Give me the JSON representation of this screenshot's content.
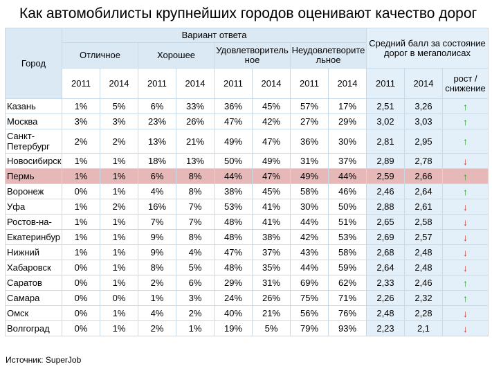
{
  "title": "Как автомобилисты крупнейших городов оценивают качество дорог",
  "headers": {
    "city": "Город",
    "variant": "Вариант ответа",
    "groups": [
      "Отличное",
      "Хорошее",
      "Удовлетворитель ное",
      "Неудовлетворите льное"
    ],
    "avg": "Средний балл за состояние дорог в мегаполисах",
    "years": [
      "2011",
      "2014"
    ],
    "trend": "рост / снижение"
  },
  "rows": [
    {
      "city": "Казань",
      "v": [
        "1%",
        "5%",
        "6%",
        "33%",
        "36%",
        "45%",
        "57%",
        "17%",
        "2,51",
        "3,26"
      ],
      "trend": "up"
    },
    {
      "city": "Москва",
      "v": [
        "3%",
        "3%",
        "23%",
        "26%",
        "47%",
        "42%",
        "27%",
        "29%",
        "3,02",
        "3,03"
      ],
      "trend": "up"
    },
    {
      "city": "Санкт-Петербург",
      "v": [
        "2%",
        "2%",
        "13%",
        "21%",
        "49%",
        "47%",
        "36%",
        "30%",
        "2,81",
        "2,95"
      ],
      "trend": "up"
    },
    {
      "city": "Новосибирск",
      "v": [
        "1%",
        "1%",
        "18%",
        "13%",
        "50%",
        "49%",
        "31%",
        "37%",
        "2,89",
        "2,78"
      ],
      "trend": "down"
    },
    {
      "city": "Пермь",
      "v": [
        "1%",
        "1%",
        "6%",
        "8%",
        "44%",
        "47%",
        "49%",
        "44%",
        "2,59",
        "2,66"
      ],
      "trend": "up",
      "highlight": true
    },
    {
      "city": "Воронеж",
      "v": [
        "0%",
        "1%",
        "4%",
        "8%",
        "38%",
        "45%",
        "58%",
        "46%",
        "2,46",
        "2,64"
      ],
      "trend": "up"
    },
    {
      "city": "Уфа",
      "v": [
        "1%",
        "2%",
        "16%",
        "7%",
        "53%",
        "41%",
        "30%",
        "50%",
        "2,88",
        "2,61"
      ],
      "trend": "down"
    },
    {
      "city": "Ростов-на-",
      "v": [
        "1%",
        "1%",
        "7%",
        "7%",
        "48%",
        "41%",
        "44%",
        "51%",
        "2,65",
        "2,58"
      ],
      "trend": "down"
    },
    {
      "city": "Екатеринбур",
      "v": [
        "1%",
        "1%",
        "9%",
        "8%",
        "48%",
        "38%",
        "42%",
        "53%",
        "2,69",
        "2,57"
      ],
      "trend": "down"
    },
    {
      "city": "Нижний",
      "v": [
        "1%",
        "1%",
        "9%",
        "4%",
        "47%",
        "37%",
        "43%",
        "58%",
        "2,68",
        "2,48"
      ],
      "trend": "down"
    },
    {
      "city": "Хабаровск",
      "v": [
        "0%",
        "1%",
        "8%",
        "5%",
        "48%",
        "35%",
        "44%",
        "59%",
        "2,64",
        "2,48"
      ],
      "trend": "down"
    },
    {
      "city": "Саратов",
      "v": [
        "0%",
        "1%",
        "2%",
        "6%",
        "29%",
        "31%",
        "69%",
        "62%",
        "2,33",
        "2,46"
      ],
      "trend": "up"
    },
    {
      "city": "Самара",
      "v": [
        "0%",
        "0%",
        "1%",
        "3%",
        "24%",
        "26%",
        "75%",
        "71%",
        "2,26",
        "2,32"
      ],
      "trend": "up"
    },
    {
      "city": "Омск",
      "v": [
        "0%",
        "1%",
        "4%",
        "2%",
        "40%",
        "21%",
        "56%",
        "76%",
        "2,48",
        "2,28"
      ],
      "trend": "down"
    },
    {
      "city": "Волгоград",
      "v": [
        "0%",
        "1%",
        "2%",
        "1%",
        "19%",
        "5%",
        "79%",
        "93%",
        "2,23",
        "2,1"
      ],
      "trend": "down"
    }
  ],
  "arrows": {
    "up": "↑",
    "down": "↓"
  },
  "colors": {
    "header": "#dbe9f4",
    "highlight": "#e6b8b8",
    "up": "#2ca02c",
    "down": "#d93025"
  },
  "source": "Источник: SuperJob"
}
